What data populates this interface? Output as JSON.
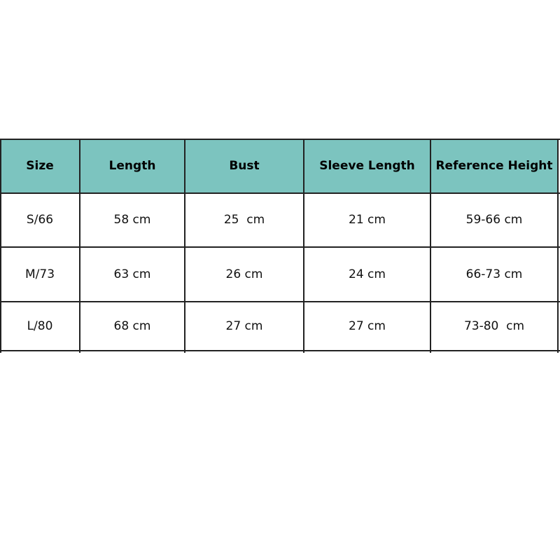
{
  "table": {
    "header_color": "#7cc4bf",
    "headers": [
      "Size",
      "Length",
      "Bust",
      "Sleeve Length",
      "Reference Height"
    ],
    "rows": [
      [
        "S/66",
        "58 cm",
        "25  cm",
        "21 cm",
        "59-66 cm"
      ],
      [
        "M/73",
        "63 cm",
        "26 cm",
        "24 cm",
        "66-73 cm"
      ],
      [
        "L/80",
        "68 cm",
        "27 cm",
        "27 cm",
        "73-80  cm"
      ]
    ]
  }
}
